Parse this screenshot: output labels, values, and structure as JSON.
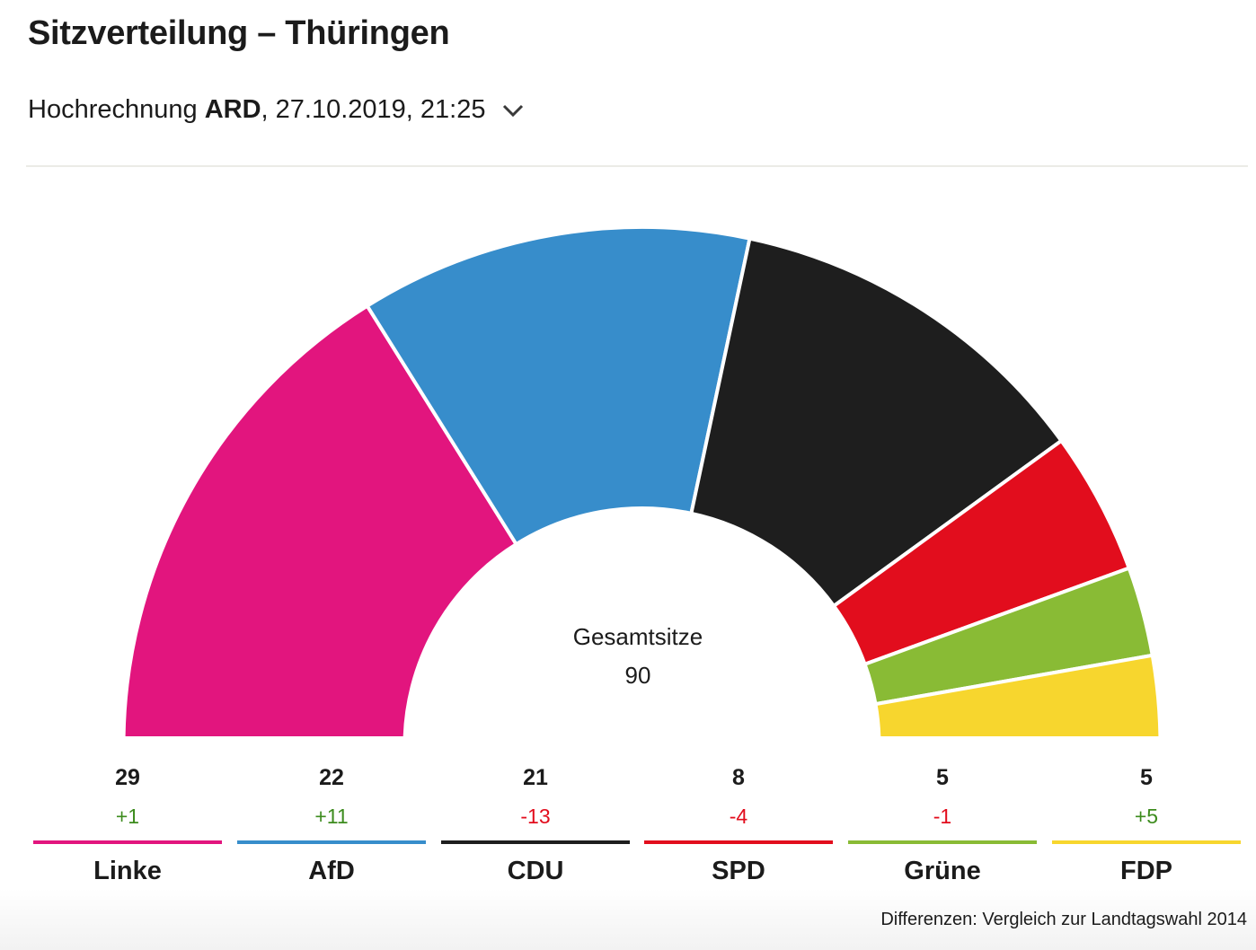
{
  "header": {
    "title": "Sitzverteilung – Thüringen",
    "subtitle_prefix": "Hochrechnung ",
    "subtitle_source": "ARD",
    "subtitle_suffix": ", 27.10.2019, 21:25",
    "dropdown_icon": "chevron-down-icon"
  },
  "center": {
    "label": "Gesamtsitze",
    "value": "90"
  },
  "footnote": "Differenzen: Vergleich zur Landtagswahl 2014",
  "colors": {
    "positive": "#3d8c1e",
    "negative": "#e20d1d"
  },
  "chart_data": {
    "type": "pie",
    "variant": "semicircle-donut (parliament seat distribution)",
    "title": "Sitzverteilung – Thüringen",
    "total": 90,
    "categories": [
      "Linke",
      "AfD",
      "CDU",
      "SPD",
      "Grüne",
      "FDP"
    ],
    "values": [
      29,
      22,
      21,
      8,
      5,
      5
    ],
    "diffs": [
      "+1",
      "+11",
      "-13",
      "-4",
      "-1",
      "+5"
    ],
    "colors": [
      "#e2157e",
      "#378dcb",
      "#1e1e1e",
      "#e20d1d",
      "#89bb35",
      "#f7d62e"
    ],
    "center_label": "Gesamtsitze",
    "center_value": 90,
    "legend_position": "bottom"
  },
  "legend": [
    {
      "name": "Linke",
      "seats": "29",
      "diff": "+1",
      "color": "#e2157e",
      "sign": "positive"
    },
    {
      "name": "AfD",
      "seats": "22",
      "diff": "+11",
      "color": "#378dcb",
      "sign": "positive"
    },
    {
      "name": "CDU",
      "seats": "21",
      "diff": "-13",
      "color": "#1e1e1e",
      "sign": "negative"
    },
    {
      "name": "SPD",
      "seats": "8",
      "diff": "-4",
      "color": "#e20d1d",
      "sign": "negative"
    },
    {
      "name": "Grüne",
      "seats": "5",
      "diff": "-1",
      "color": "#89bb35",
      "sign": "negative"
    },
    {
      "name": "FDP",
      "seats": "5",
      "diff": "+5",
      "color": "#f7d62e",
      "sign": "positive"
    }
  ]
}
